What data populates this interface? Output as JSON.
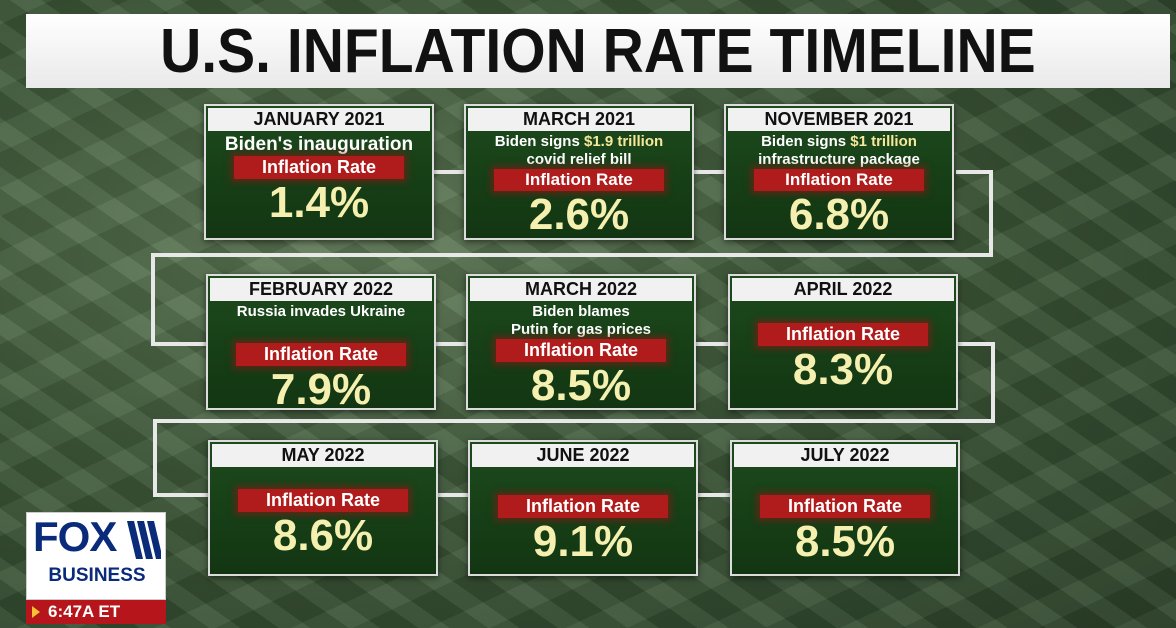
{
  "title": "U.S. INFLATION RATE TIMELINE",
  "rate_label": "Inflation Rate",
  "cards": [
    {
      "date": "JANUARY 2021",
      "event_parts": [
        "Biden's inauguration"
      ],
      "event_highlight": "",
      "event_after": "",
      "value": "1.4%"
    },
    {
      "date": "MARCH 2021",
      "event_parts": [
        "Biden signs "
      ],
      "event_highlight": "$1.9 trillion",
      "event_after": "covid relief bill",
      "value": "2.6%"
    },
    {
      "date": "NOVEMBER 2021",
      "event_parts": [
        "Biden signs "
      ],
      "event_highlight": "$1 trillion",
      "event_after": "infrastructure package",
      "value": "6.8%"
    },
    {
      "date": "FEBRUARY 2022",
      "event_parts": [
        "Russia invades Ukraine"
      ],
      "event_highlight": "",
      "event_after": "",
      "value": "7.9%"
    },
    {
      "date": "MARCH 2022",
      "event_parts": [
        "Biden blames"
      ],
      "event_highlight": "",
      "event_after": "Putin for gas prices",
      "value": "8.5%"
    },
    {
      "date": "APRIL 2022",
      "event_parts": [],
      "event_highlight": "",
      "event_after": "",
      "value": "8.3%"
    },
    {
      "date": "MAY 2022",
      "event_parts": [],
      "event_highlight": "",
      "event_after": "",
      "value": "8.6%"
    },
    {
      "date": "JUNE 2022",
      "event_parts": [],
      "event_highlight": "",
      "event_after": "",
      "value": "9.1%"
    },
    {
      "date": "JULY 2022",
      "event_parts": [],
      "event_highlight": "",
      "event_after": "",
      "value": "8.5%"
    }
  ],
  "logo": {
    "brand": "FOX",
    "sub": "BUSINESS"
  },
  "clock": "6:47A ET",
  "colors": {
    "card_bg": "#1d4a1d",
    "rate_label_bg": "#b01c1c",
    "value_text": "#f5efb0",
    "highlight": "#f6e89a",
    "clock_bar": "#b5151b"
  }
}
